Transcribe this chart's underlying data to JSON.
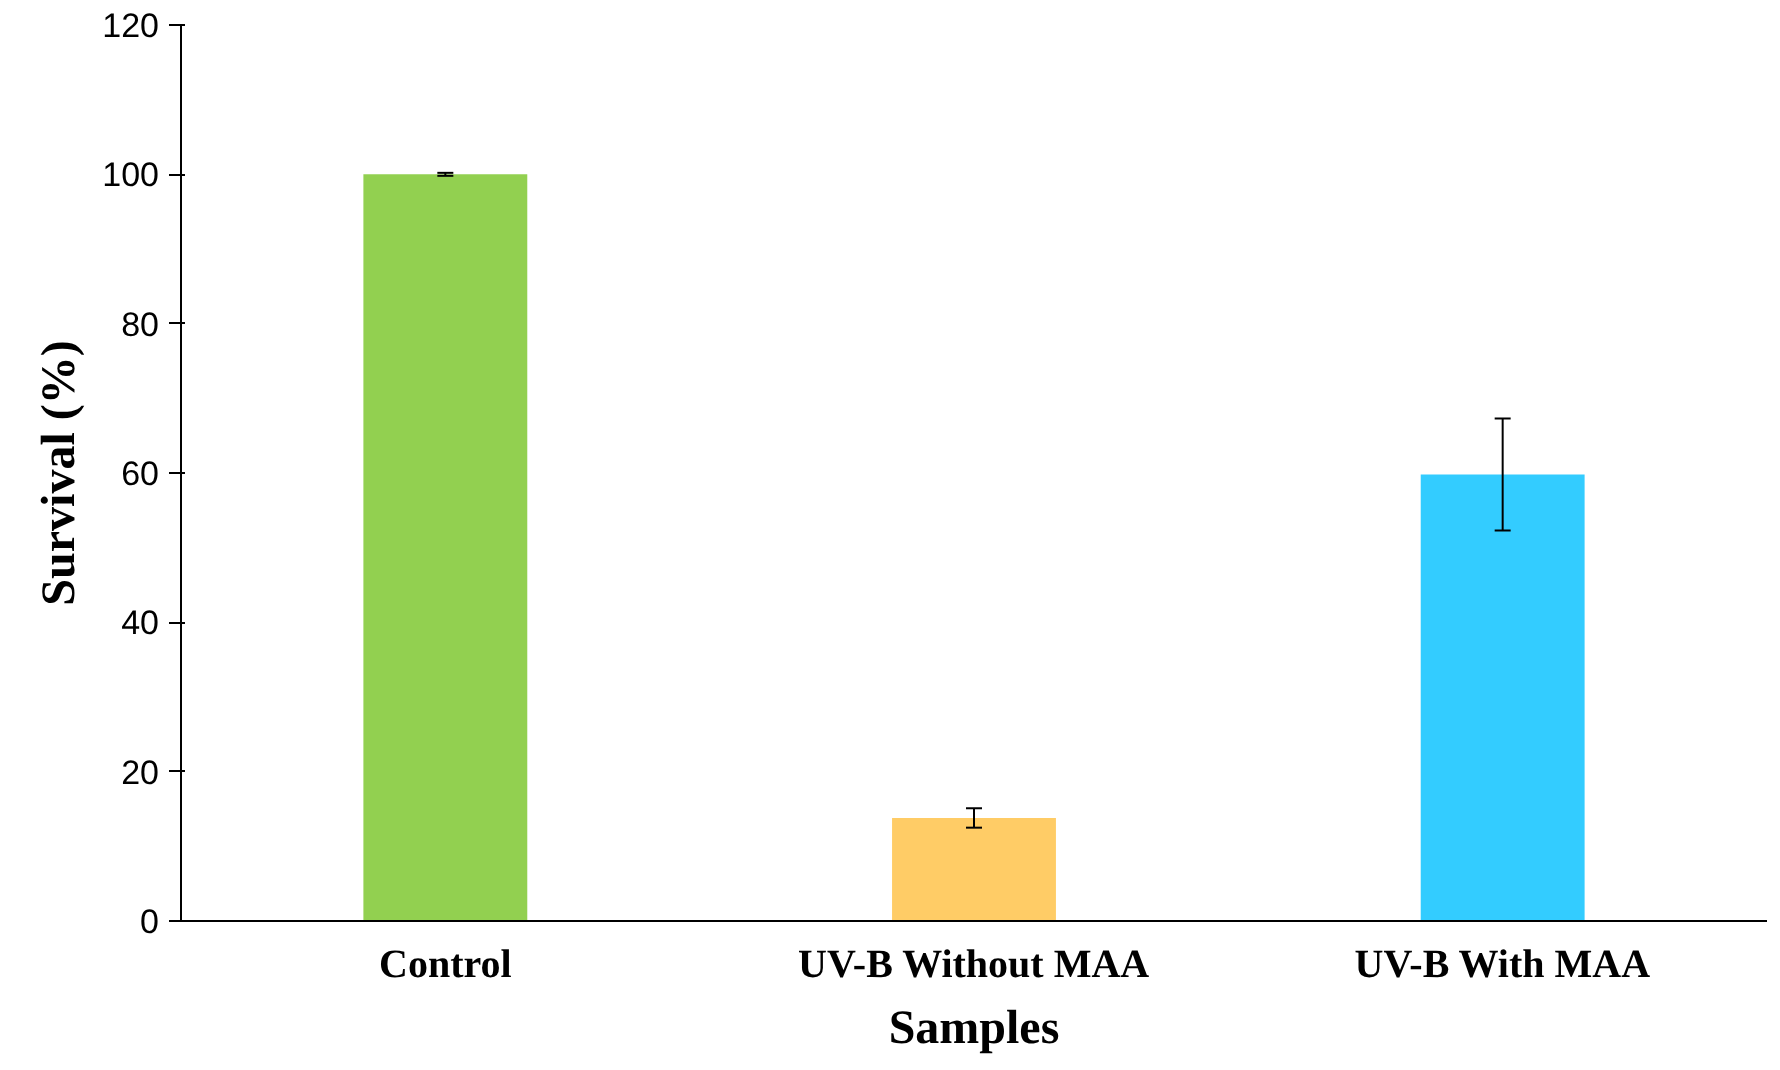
{
  "chart_data": {
    "type": "bar",
    "xlabel": "Samples",
    "ylabel": "Survival (%)",
    "categories": [
      "Control",
      "UV-B Without MAA",
      "UV-B With MAA"
    ],
    "values": [
      100,
      13.8,
      59.8
    ],
    "colors": [
      "#92d050",
      "#ffcc66",
      "#33ccff"
    ],
    "errors": [
      0.2,
      1.3,
      7.5
    ],
    "ylim": [
      0,
      120
    ],
    "yticks": [
      0,
      20,
      40,
      60,
      80,
      100,
      120
    ],
    "grid": false
  }
}
